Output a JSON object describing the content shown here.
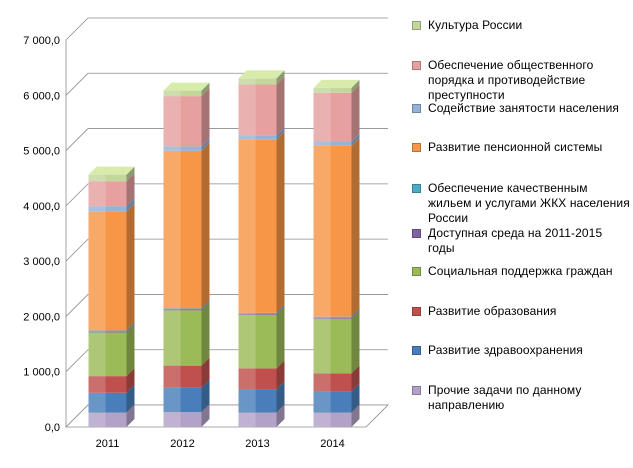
{
  "chart_data": {
    "type": "bar",
    "stacked": true,
    "three_d": true,
    "categories": [
      "2011",
      "2012",
      "2013",
      "2014"
    ],
    "ylim": [
      0,
      7000
    ],
    "yticks": [
      "0,0",
      "1 000,0",
      "2 000,0",
      "3 000,0",
      "4 000,0",
      "5 000,0",
      "6 000,0",
      "7 000,0"
    ],
    "grid": true,
    "legend_position": "right",
    "title": "",
    "xlabel": "",
    "ylabel": "",
    "series": [
      {
        "name": "Прочие задачи по данному направлению",
        "color": "#b3a2c7",
        "values": [
          260,
          270,
          260,
          260
        ]
      },
      {
        "name": "Развитие здравоохранения",
        "color": "#4a7ebb",
        "values": [
          360,
          440,
          420,
          380
        ]
      },
      {
        "name": "Развитие образования",
        "color": "#c0504d",
        "values": [
          300,
          400,
          380,
          330
        ]
      },
      {
        "name": "Социальная поддержка граждан",
        "color": "#9bbb59",
        "values": [
          790,
          1000,
          970,
          990
        ]
      },
      {
        "name": "Доступная среда на 2011-2015 годы",
        "color": "#8064a2",
        "values": [
          15,
          15,
          15,
          15
        ]
      },
      {
        "name": "Обеспечение качественным жильем и услугами ЖКХ населения России",
        "color": "#4bacc6",
        "values": [
          20,
          20,
          20,
          20
        ]
      },
      {
        "name": "Развитие пенсионной системы",
        "color": "#f79646",
        "values": [
          2150,
          2850,
          3130,
          3090
        ]
      },
      {
        "name": "Содействие занятости населения",
        "color": "#95b3d7",
        "values": [
          100,
          80,
          80,
          80
        ]
      },
      {
        "name": "Обеспечение общественного порядка и противодействие преступности",
        "color": "#e6a0a0",
        "values": [
          450,
          910,
          920,
          880
        ]
      },
      {
        "name": "Культура России",
        "color": "#c3d69b",
        "values": [
          120,
          100,
          110,
          90
        ]
      }
    ]
  }
}
